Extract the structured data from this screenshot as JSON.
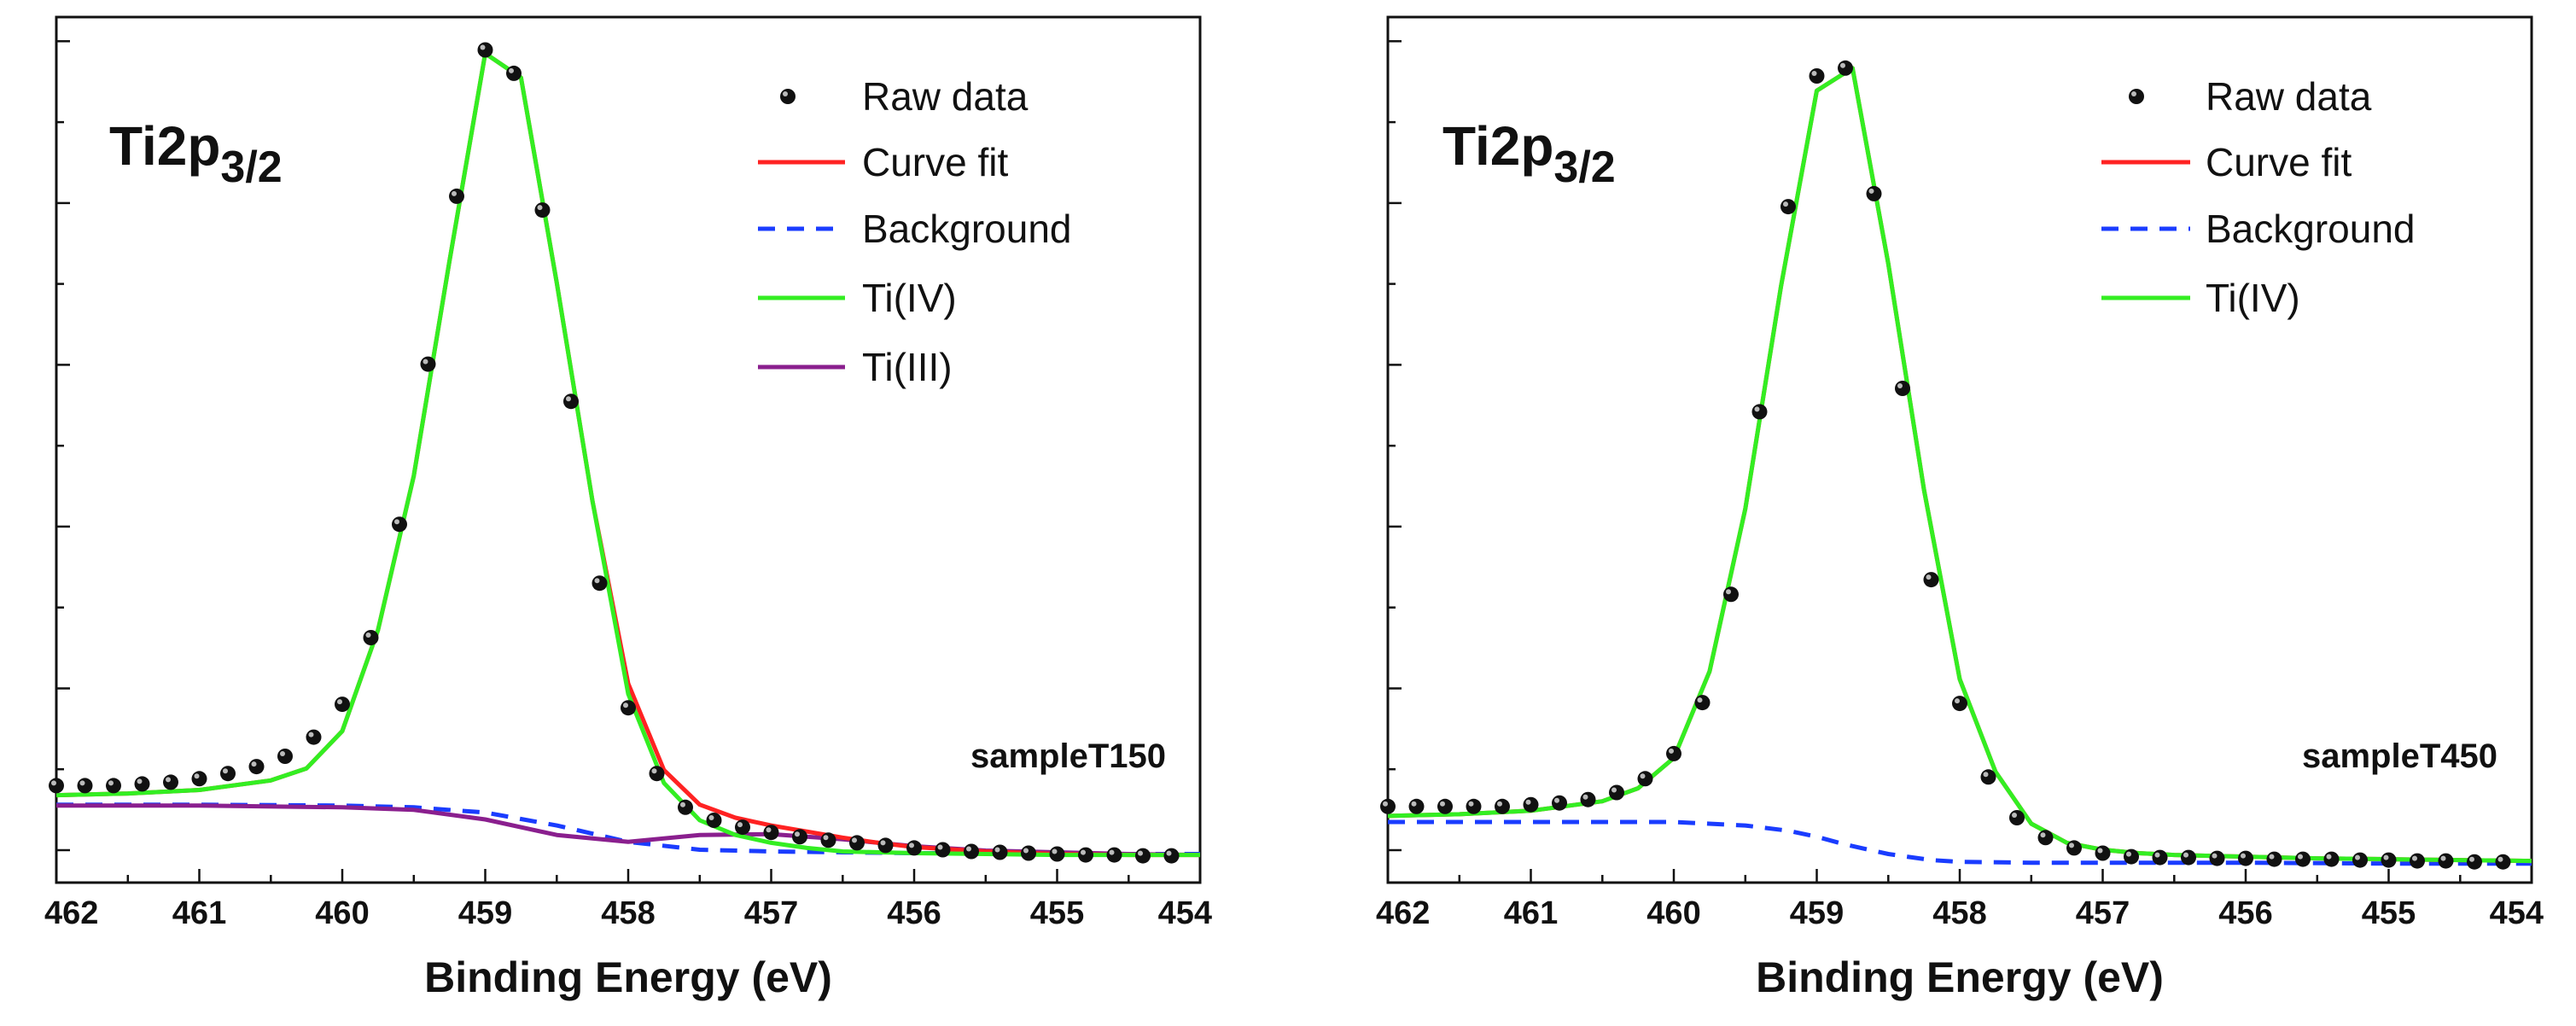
{
  "chart_data": [
    {
      "type": "line",
      "panel": "left",
      "title_main": "Ti2p",
      "title_sub": "3/2",
      "sample_label": "sampleT150",
      "xlabel": "Binding Energy (eV)",
      "ylabel": "",
      "xlim": [
        462,
        454
      ],
      "ylim": [
        0,
        1
      ],
      "x_ticks": [
        "462",
        "461",
        "460",
        "459",
        "458",
        "457",
        "456",
        "455",
        "454"
      ],
      "legend": [
        {
          "label": "Raw data",
          "style": "marker",
          "color": "#111111"
        },
        {
          "label": "Curve fit",
          "style": "solid",
          "color": "#ff2222"
        },
        {
          "label": "Background",
          "style": "dashed",
          "color": "#1a3cff"
        },
        {
          "label": "Ti(IV)",
          "style": "solid",
          "color": "#33ee22"
        },
        {
          "label": "Ti(III)",
          "style": "solid",
          "color": "#8a1f8e"
        }
      ],
      "raw_data": {
        "x": [
          462.0,
          461.8,
          461.6,
          461.4,
          461.2,
          461.0,
          460.8,
          460.6,
          460.4,
          460.2,
          460.0,
          459.8,
          459.6,
          459.4,
          459.2,
          459.0,
          458.8,
          458.6,
          458.4,
          458.2,
          458.0,
          457.8,
          457.6,
          457.4,
          457.2,
          457.0,
          456.8,
          456.6,
          456.4,
          456.2,
          456.0,
          455.8,
          455.6,
          455.4,
          455.2,
          455.0,
          454.8,
          454.6,
          454.4,
          454.2
        ],
        "y": [
          0.112,
          0.112,
          0.112,
          0.114,
          0.116,
          0.12,
          0.126,
          0.134,
          0.146,
          0.168,
          0.206,
          0.283,
          0.414,
          0.599,
          0.793,
          0.962,
          0.935,
          0.777,
          0.556,
          0.346,
          0.202,
          0.126,
          0.087,
          0.072,
          0.064,
          0.058,
          0.053,
          0.049,
          0.046,
          0.043,
          0.04,
          0.038,
          0.036,
          0.035,
          0.034,
          0.033,
          0.032,
          0.032,
          0.031,
          0.031
        ]
      },
      "series": [
        {
          "name": "Background",
          "x": [
            462.0,
            461.0,
            460.0,
            459.5,
            459.0,
            458.5,
            458.0,
            457.5,
            457.0,
            456.5,
            456.0,
            455.5,
            455.0,
            454.5,
            454.0
          ],
          "y": [
            0.09,
            0.09,
            0.089,
            0.087,
            0.081,
            0.066,
            0.047,
            0.038,
            0.036,
            0.035,
            0.034,
            0.034,
            0.033,
            0.033,
            0.033
          ]
        },
        {
          "name": "Ti(III)",
          "x": [
            462.0,
            461.0,
            460.0,
            459.5,
            459.0,
            458.5,
            458.0,
            457.5,
            457.0,
            456.5,
            456.0,
            455.5,
            455.0,
            454.5,
            454.0
          ],
          "y": [
            0.089,
            0.089,
            0.087,
            0.084,
            0.073,
            0.055,
            0.047,
            0.055,
            0.056,
            0.05,
            0.042,
            0.037,
            0.035,
            0.033,
            0.032
          ]
        },
        {
          "name": "Curve fit",
          "x": [
            462.0,
            461.5,
            461.0,
            460.5,
            460.25,
            460.0,
            459.75,
            459.5,
            459.25,
            459.0,
            458.75,
            458.5,
            458.25,
            458.0,
            457.75,
            457.5,
            457.25,
            457.0,
            456.75,
            456.5,
            456.25,
            456.0,
            455.5,
            455.0,
            454.5,
            454.0
          ],
          "y": [
            0.101,
            0.103,
            0.107,
            0.118,
            0.132,
            0.175,
            0.292,
            0.47,
            0.718,
            0.958,
            0.93,
            0.693,
            0.441,
            0.23,
            0.13,
            0.09,
            0.075,
            0.066,
            0.059,
            0.052,
            0.046,
            0.041,
            0.036,
            0.033,
            0.032,
            0.032
          ]
        },
        {
          "name": "Ti(IV)",
          "x": [
            462.0,
            461.5,
            461.0,
            460.5,
            460.25,
            460.0,
            459.75,
            459.5,
            459.25,
            459.0,
            458.75,
            458.5,
            458.25,
            458.0,
            457.75,
            457.5,
            457.25,
            457.0,
            456.75,
            456.5,
            456.0,
            455.5,
            455.0,
            454.5,
            454.0
          ],
          "y": [
            0.101,
            0.103,
            0.107,
            0.118,
            0.132,
            0.175,
            0.292,
            0.47,
            0.718,
            0.958,
            0.93,
            0.693,
            0.441,
            0.218,
            0.115,
            0.072,
            0.055,
            0.046,
            0.04,
            0.036,
            0.034,
            0.033,
            0.032,
            0.032,
            0.032
          ]
        }
      ]
    },
    {
      "type": "line",
      "panel": "right",
      "title_main": "Ti2p",
      "title_sub": "3/2",
      "sample_label": "sampleT450",
      "xlabel": "Binding Energy (eV)",
      "ylabel": "",
      "xlim": [
        462,
        454
      ],
      "ylim": [
        0,
        1
      ],
      "x_ticks": [
        "462",
        "461",
        "460",
        "459",
        "458",
        "457",
        "456",
        "455",
        "454"
      ],
      "legend": [
        {
          "label": "Raw data",
          "style": "marker",
          "color": "#111111"
        },
        {
          "label": "Curve fit",
          "style": "solid",
          "color": "#ff2222"
        },
        {
          "label": "Background",
          "style": "dashed",
          "color": "#1a3cff"
        },
        {
          "label": "Ti(IV)",
          "style": "solid",
          "color": "#33ee22"
        }
      ],
      "raw_data": {
        "x": [
          462.0,
          461.8,
          461.6,
          461.4,
          461.2,
          461.0,
          460.8,
          460.6,
          460.4,
          460.2,
          460.0,
          459.8,
          459.6,
          459.4,
          459.2,
          459.0,
          458.8,
          458.6,
          458.4,
          458.2,
          458.0,
          457.8,
          457.6,
          457.4,
          457.2,
          457.0,
          456.8,
          456.6,
          456.4,
          456.2,
          456.0,
          455.8,
          455.6,
          455.4,
          455.2,
          455.0,
          454.8,
          454.6,
          454.4,
          454.2
        ],
        "y": [
          0.088,
          0.088,
          0.088,
          0.088,
          0.088,
          0.09,
          0.092,
          0.096,
          0.104,
          0.12,
          0.149,
          0.208,
          0.333,
          0.544,
          0.781,
          0.932,
          0.941,
          0.796,
          0.571,
          0.35,
          0.207,
          0.122,
          0.075,
          0.052,
          0.04,
          0.034,
          0.03,
          0.029,
          0.029,
          0.028,
          0.028,
          0.027,
          0.027,
          0.027,
          0.026,
          0.026,
          0.025,
          0.025,
          0.024,
          0.024
        ]
      },
      "series": [
        {
          "name": "Background",
          "x": [
            462.0,
            461.5,
            461.0,
            460.5,
            460.0,
            459.5,
            459.2,
            459.0,
            458.8,
            458.5,
            458.2,
            458.0,
            457.5,
            457.0,
            456.5,
            456.0,
            455.0,
            454.0
          ],
          "y": [
            0.07,
            0.07,
            0.07,
            0.07,
            0.07,
            0.066,
            0.06,
            0.053,
            0.044,
            0.033,
            0.026,
            0.024,
            0.023,
            0.023,
            0.023,
            0.023,
            0.022,
            0.022
          ]
        },
        {
          "name": "Curve fit",
          "x": [
            462.0,
            461.5,
            461.0,
            460.5,
            460.25,
            460.0,
            459.75,
            459.5,
            459.25,
            459.0,
            458.75,
            458.5,
            458.25,
            458.0,
            457.75,
            457.5,
            457.25,
            457.0,
            456.75,
            456.5,
            456.0,
            455.5,
            455.0,
            454.5,
            454.0
          ],
          "y": [
            0.077,
            0.079,
            0.083,
            0.094,
            0.109,
            0.144,
            0.244,
            0.432,
            0.689,
            0.915,
            0.941,
            0.715,
            0.454,
            0.235,
            0.128,
            0.068,
            0.046,
            0.038,
            0.034,
            0.032,
            0.03,
            0.028,
            0.027,
            0.026,
            0.025
          ]
        },
        {
          "name": "Ti(IV)",
          "x": [
            462.0,
            461.5,
            461.0,
            460.5,
            460.25,
            460.0,
            459.75,
            459.5,
            459.25,
            459.0,
            458.75,
            458.5,
            458.25,
            458.0,
            457.75,
            457.5,
            457.25,
            457.0,
            456.75,
            456.5,
            456.0,
            455.5,
            455.0,
            454.5,
            454.0
          ],
          "y": [
            0.077,
            0.079,
            0.083,
            0.094,
            0.109,
            0.144,
            0.244,
            0.432,
            0.689,
            0.915,
            0.941,
            0.715,
            0.454,
            0.235,
            0.128,
            0.068,
            0.046,
            0.038,
            0.034,
            0.032,
            0.03,
            0.028,
            0.027,
            0.026,
            0.025
          ]
        }
      ]
    }
  ]
}
